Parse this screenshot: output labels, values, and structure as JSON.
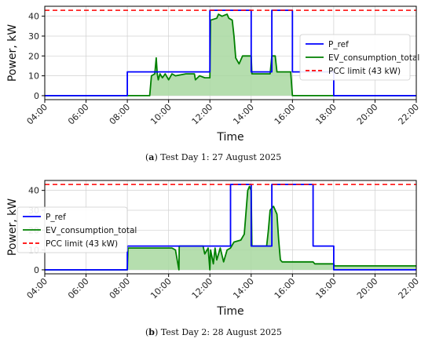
{
  "chart_data": [
    {
      "type": "line",
      "caption_letter": "a",
      "caption_text": " Test Day 1: 27 August 2025",
      "xlabel": "Time",
      "ylabel": "Power, kW",
      "xlim": [
        "04:00",
        "22:00"
      ],
      "ylim": [
        -2,
        45
      ],
      "xticks": [
        "04:00",
        "06:00",
        "08:00",
        "10:00",
        "12:00",
        "14:00",
        "16:00",
        "18:00",
        "20:00",
        "22:00"
      ],
      "yticks": [
        0,
        10,
        20,
        30,
        40
      ],
      "grid": true,
      "legend_position": "center-right",
      "series": [
        {
          "name": "P_ref",
          "color": "#0000ff",
          "style": "step",
          "points": [
            [
              "04:00",
              0
            ],
            [
              "08:00",
              0
            ],
            [
              "08:00",
              12
            ],
            [
              "12:00",
              12
            ],
            [
              "12:00",
              43
            ],
            [
              "14:00",
              43
            ],
            [
              "14:00",
              12
            ],
            [
              "15:00",
              12
            ],
            [
              "15:00",
              43
            ],
            [
              "16:00",
              43
            ],
            [
              "16:00",
              12
            ],
            [
              "18:00",
              12
            ],
            [
              "18:00",
              0
            ],
            [
              "22:00",
              0
            ]
          ]
        },
        {
          "name": "EV_consumption_total",
          "color": "#008000",
          "fill": "#a8d8a0",
          "style": "line",
          "points": [
            [
              "04:00",
              0
            ],
            [
              "09:05",
              0
            ],
            [
              "09:10",
              10
            ],
            [
              "09:20",
              11
            ],
            [
              "09:24",
              19
            ],
            [
              "09:27",
              11
            ],
            [
              "09:30",
              8
            ],
            [
              "09:35",
              11
            ],
            [
              "09:42",
              9
            ],
            [
              "09:50",
              11
            ],
            [
              "10:00",
              8
            ],
            [
              "10:10",
              11
            ],
            [
              "10:20",
              10
            ],
            [
              "10:50",
              11
            ],
            [
              "11:15",
              11
            ],
            [
              "11:18",
              8
            ],
            [
              "11:30",
              10
            ],
            [
              "11:45",
              9
            ],
            [
              "11:58",
              9
            ],
            [
              "12:00",
              9
            ],
            [
              "12:02",
              38
            ],
            [
              "12:20",
              39
            ],
            [
              "12:25",
              41
            ],
            [
              "12:35",
              40
            ],
            [
              "12:50",
              41
            ],
            [
              "12:55",
              39
            ],
            [
              "13:05",
              38
            ],
            [
              "13:10",
              30
            ],
            [
              "13:15",
              19
            ],
            [
              "13:25",
              16
            ],
            [
              "13:35",
              20
            ],
            [
              "14:00",
              20
            ],
            [
              "14:02",
              11
            ],
            [
              "14:55",
              11
            ],
            [
              "15:00",
              20
            ],
            [
              "15:10",
              20
            ],
            [
              "15:15",
              12
            ],
            [
              "15:55",
              12
            ],
            [
              "16:00",
              0
            ],
            [
              "22:00",
              0
            ]
          ]
        },
        {
          "name": "PCC limit (43 kW)",
          "color": "#ff0000",
          "style": "dashed",
          "points": [
            [
              "04:00",
              43
            ],
            [
              "22:00",
              43
            ]
          ]
        }
      ]
    },
    {
      "type": "line",
      "caption_letter": "b",
      "caption_text": " Test Day 2: 28 August 2025",
      "xlabel": "Time",
      "ylabel": "Power, kW",
      "xlim": [
        "04:00",
        "22:00"
      ],
      "ylim": [
        -2,
        45
      ],
      "xticks": [
        "04:00",
        "06:00",
        "08:00",
        "10:00",
        "12:00",
        "14:00",
        "16:00",
        "18:00",
        "20:00",
        "22:00"
      ],
      "yticks": [
        0,
        10,
        20,
        30,
        40
      ],
      "grid": true,
      "legend_position": "center-left",
      "series": [
        {
          "name": "P_ref",
          "color": "#0000ff",
          "style": "step",
          "points": [
            [
              "04:00",
              0
            ],
            [
              "08:00",
              0
            ],
            [
              "08:00",
              12
            ],
            [
              "13:00",
              12
            ],
            [
              "13:00",
              43
            ],
            [
              "14:00",
              43
            ],
            [
              "14:00",
              12
            ],
            [
              "15:00",
              12
            ],
            [
              "15:00",
              43
            ],
            [
              "17:00",
              43
            ],
            [
              "17:00",
              12
            ],
            [
              "18:00",
              12
            ],
            [
              "18:00",
              0
            ],
            [
              "22:00",
              0
            ]
          ]
        },
        {
          "name": "EV_consumption_total",
          "color": "#008000",
          "fill": "#a8d8a0",
          "style": "line",
          "points": [
            [
              "04:00",
              0
            ],
            [
              "08:00",
              0
            ],
            [
              "08:02",
              11
            ],
            [
              "10:10",
              11
            ],
            [
              "10:20",
              10
            ],
            [
              "10:30",
              0
            ],
            [
              "10:31",
              12
            ],
            [
              "11:40",
              12
            ],
            [
              "11:45",
              8
            ],
            [
              "11:55",
              11
            ],
            [
              "12:00",
              0
            ],
            [
              "12:02",
              10
            ],
            [
              "12:10",
              3
            ],
            [
              "12:15",
              11
            ],
            [
              "12:20",
              5
            ],
            [
              "12:30",
              11
            ],
            [
              "12:40",
              4
            ],
            [
              "12:50",
              10
            ],
            [
              "13:00",
              11
            ],
            [
              "13:10",
              14
            ],
            [
              "13:30",
              15
            ],
            [
              "13:40",
              18
            ],
            [
              "13:50",
              40
            ],
            [
              "13:55",
              42
            ],
            [
              "14:00",
              40
            ],
            [
              "14:02",
              12
            ],
            [
              "14:45",
              12
            ],
            [
              "14:50",
              20
            ],
            [
              "14:55",
              30
            ],
            [
              "15:05",
              32
            ],
            [
              "15:15",
              28
            ],
            [
              "15:20",
              15
            ],
            [
              "15:25",
              5
            ],
            [
              "15:30",
              4
            ],
            [
              "17:00",
              4
            ],
            [
              "17:05",
              3
            ],
            [
              "18:00",
              3
            ],
            [
              "18:02",
              2
            ],
            [
              "22:00",
              2
            ]
          ]
        },
        {
          "name": "PCC limit (43 kW)",
          "color": "#ff0000",
          "style": "dashed",
          "points": [
            [
              "04:00",
              43
            ],
            [
              "22:00",
              43
            ]
          ]
        }
      ]
    }
  ]
}
